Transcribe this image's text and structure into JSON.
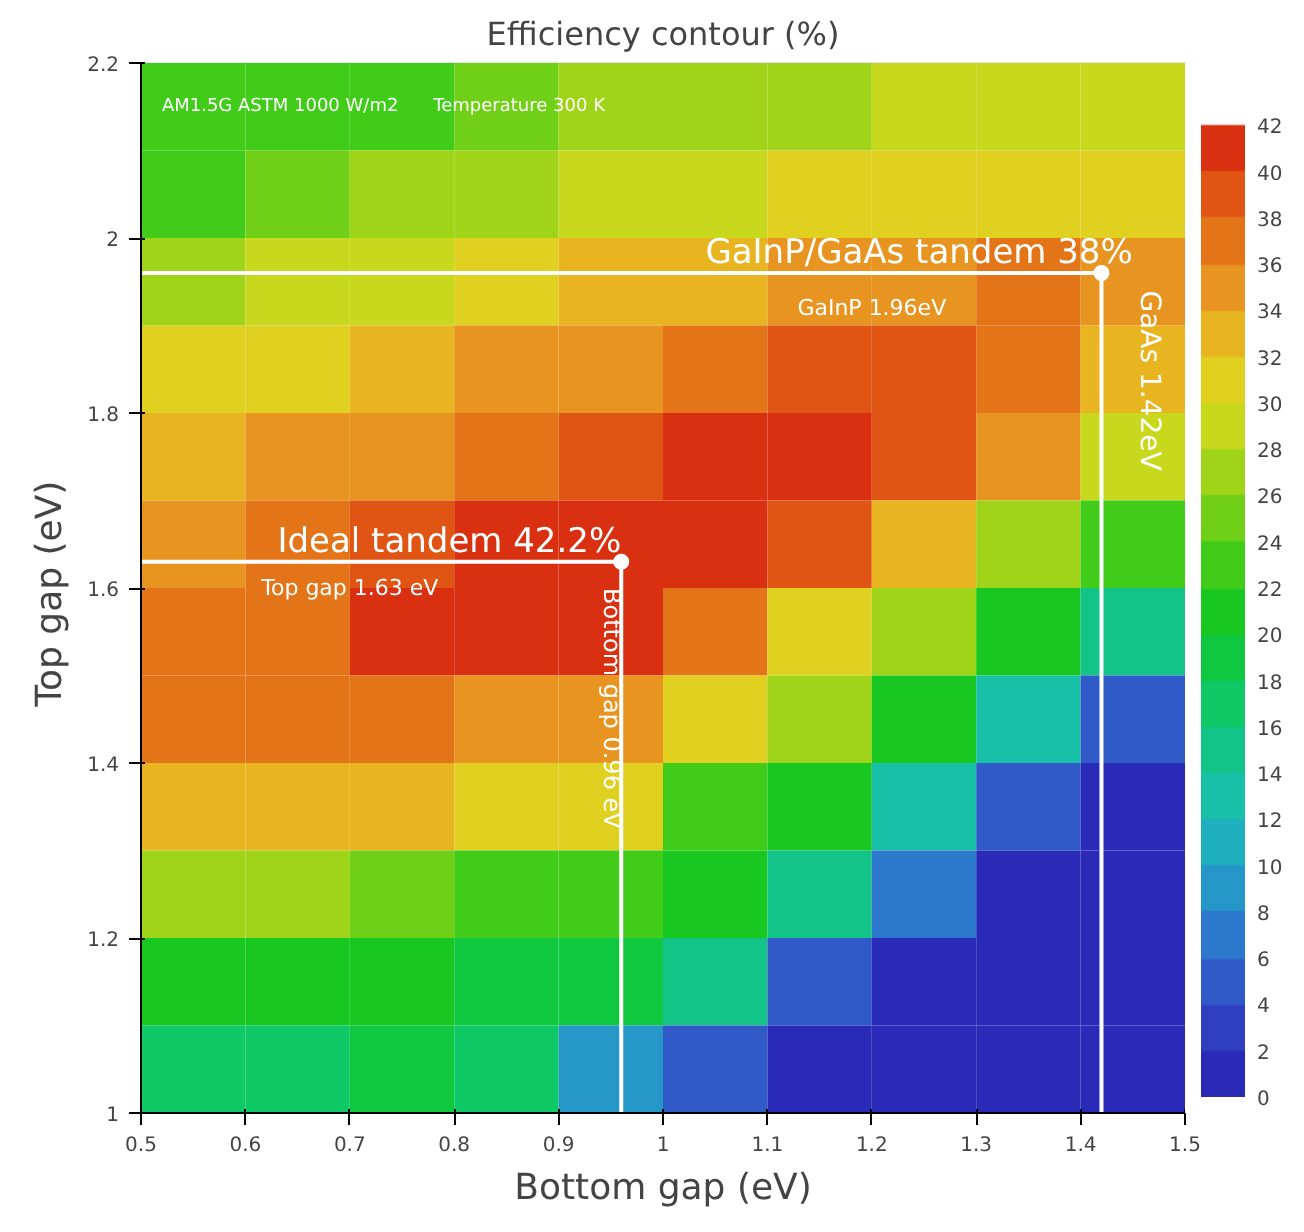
{
  "chart_data": {
    "type": "heatmap",
    "title": "Efficiency contour (%)",
    "xlabel": "Bottom gap (eV)",
    "ylabel": "Top gap  (eV)",
    "x": [
      0.55,
      0.65,
      0.75,
      0.85,
      0.95,
      1.05,
      1.15,
      1.25,
      1.35,
      1.45
    ],
    "y": [
      2.15,
      2.05,
      1.95,
      1.85,
      1.75,
      1.65,
      1.55,
      1.45,
      1.35,
      1.25,
      1.15,
      1.05
    ],
    "cells": [
      [
        22,
        23,
        24,
        25,
        26,
        26,
        27,
        28,
        28,
        28
      ],
      [
        24,
        25,
        26,
        27,
        28,
        29,
        30,
        31,
        31,
        30
      ],
      [
        27,
        28,
        29,
        30,
        32,
        33,
        34,
        35,
        36,
        35
      ],
      [
        30,
        31,
        32,
        34,
        35,
        37,
        38,
        38,
        37,
        33
      ],
      [
        33,
        34,
        35,
        37,
        38,
        40,
        41,
        39,
        34,
        28
      ],
      [
        35,
        36,
        38,
        40,
        41,
        41,
        39,
        33,
        27,
        22
      ],
      [
        36,
        37,
        41,
        41,
        40,
        36,
        31,
        26,
        21,
        14
      ],
      [
        36,
        36,
        37,
        35,
        34,
        30,
        26,
        20,
        13,
        6
      ],
      [
        33,
        33,
        32,
        31,
        30,
        24,
        20,
        13,
        6,
        1
      ],
      [
        26,
        26,
        25,
        22,
        22,
        20,
        14,
        7,
        1,
        0
      ],
      [
        21,
        20,
        21,
        19,
        18,
        14,
        6,
        1,
        0,
        0
      ],
      [
        17,
        17,
        18,
        16,
        8,
        4,
        1,
        0,
        0,
        0
      ]
    ],
    "clim": [
      0,
      44
    ],
    "cticks": [
      0,
      2,
      4,
      6,
      8,
      10,
      12,
      14,
      16,
      18,
      20,
      22,
      24,
      26,
      28,
      30,
      32,
      34,
      36,
      38,
      40,
      42
    ],
    "xlim": [
      0.5,
      1.5
    ],
    "xticks": [
      0.5,
      0.6,
      0.7,
      0.8,
      0.9,
      1,
      1.1,
      1.2,
      1.3,
      1.4,
      1.5
    ],
    "ylim": [
      1,
      2.2
    ],
    "yticks": [
      1,
      1.2,
      1.4,
      1.6,
      1.8,
      2,
      2.2
    ],
    "series": [
      {
        "type": "line",
        "color": "#ffffff",
        "x": [
          0.5,
          1.42,
          1.42
        ],
        "values": [
          1.96,
          1.96,
          1.0
        ]
      },
      {
        "type": "line",
        "color": "#ffffff",
        "x": [
          0.5,
          0.96,
          0.96
        ],
        "values": [
          1.63,
          1.63,
          1.0
        ]
      },
      {
        "type": "scatter",
        "color": "#ffffff",
        "marker": "circle",
        "x": [
          1.42,
          0.96
        ],
        "values": [
          1.96,
          1.63
        ]
      }
    ],
    "annotations": [
      "AM1.5G ASTM  1000 W/m2",
      "Temperature 300 K",
      "GaInP/GaAs tandem 38%",
      "GaInP 1.96eV",
      "GaAs 1.42eV",
      "Ideal tandem 42.2%",
      "Top gap 1.63 eV",
      "Bottom gap 0.96 eV"
    ]
  }
}
